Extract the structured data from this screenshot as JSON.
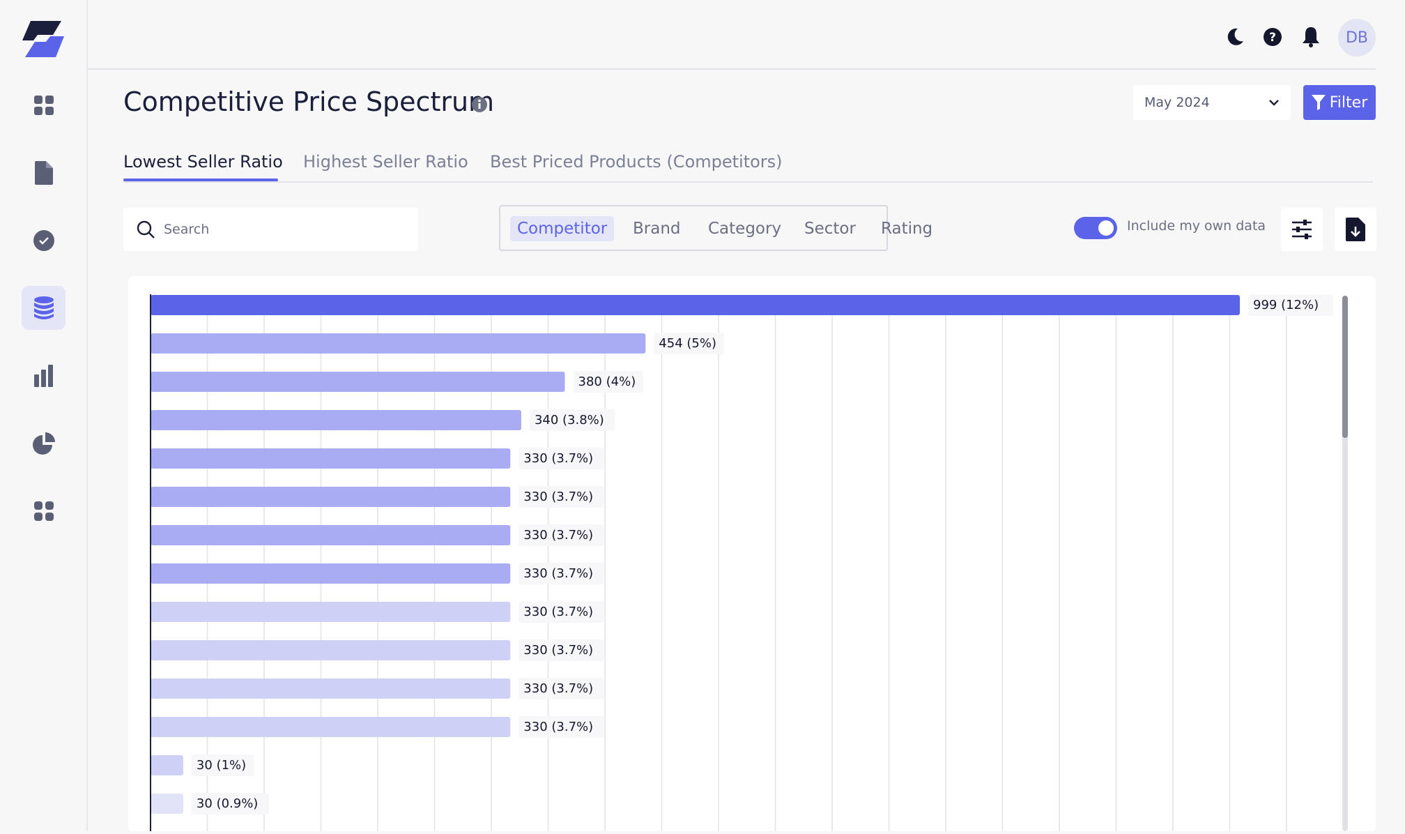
{
  "sidebar": {
    "items": [
      {
        "icon": "grid-icon",
        "active": false
      },
      {
        "icon": "document-icon",
        "active": false
      },
      {
        "icon": "check-circle-icon",
        "active": false
      },
      {
        "icon": "database-icon",
        "active": true
      },
      {
        "icon": "bar-chart-icon",
        "active": false
      },
      {
        "icon": "pie-chart-icon",
        "active": false
      },
      {
        "icon": "apps-icon",
        "active": false
      }
    ]
  },
  "topbar": {
    "icons": [
      "moon-icon",
      "help-icon",
      "bell-icon"
    ],
    "avatar_initials": "DB"
  },
  "header": {
    "title": "Competitive Price Spectrum",
    "month": "May 2024",
    "filter_label": "Filter"
  },
  "tabs": [
    {
      "label": "Lowest Seller Ratio",
      "active": true
    },
    {
      "label": "Highest Seller Ratio",
      "active": false
    },
    {
      "label": "Best Priced Products (Competitors)",
      "active": false
    }
  ],
  "search": {
    "placeholder": "Search"
  },
  "segments": [
    {
      "label": "Competitor",
      "active": true
    },
    {
      "label": "Brand",
      "active": false
    },
    {
      "label": "Category",
      "active": false
    },
    {
      "label": "Sector",
      "active": false
    },
    {
      "label": "Rating",
      "active": false
    }
  ],
  "toggle": {
    "label": "Include my own data",
    "on": true
  },
  "colors": {
    "accent": "#5b63e8",
    "bar_dark": "#5b63e8",
    "bar_mid": "#a9acf2",
    "bar_light": "#cfd0f5",
    "bar_lightest": "#e2e2f8"
  },
  "chart_data": {
    "type": "bar",
    "orientation": "horizontal",
    "values": [
      999,
      454,
      380,
      340,
      330,
      330,
      330,
      330,
      330,
      330,
      330,
      330,
      30,
      30
    ],
    "labels": [
      "999  (12%)",
      "454 (5%)",
      "380 (4%)",
      "340 (3.8%)",
      "330 (3.7%)",
      "330 (3.7%)",
      "330 (3.7%)",
      "330 (3.7%)",
      "330 (3.7%)",
      "330 (3.7%)",
      "330 (3.7%)",
      "330 (3.7%)",
      "30 (1%)",
      "30 (0.9%)"
    ],
    "bar_shade": [
      "dark",
      "mid",
      "mid",
      "mid",
      "mid",
      "mid",
      "mid",
      "mid",
      "light",
      "light",
      "light",
      "light",
      "light",
      "lightest"
    ],
    "grid": true
  }
}
